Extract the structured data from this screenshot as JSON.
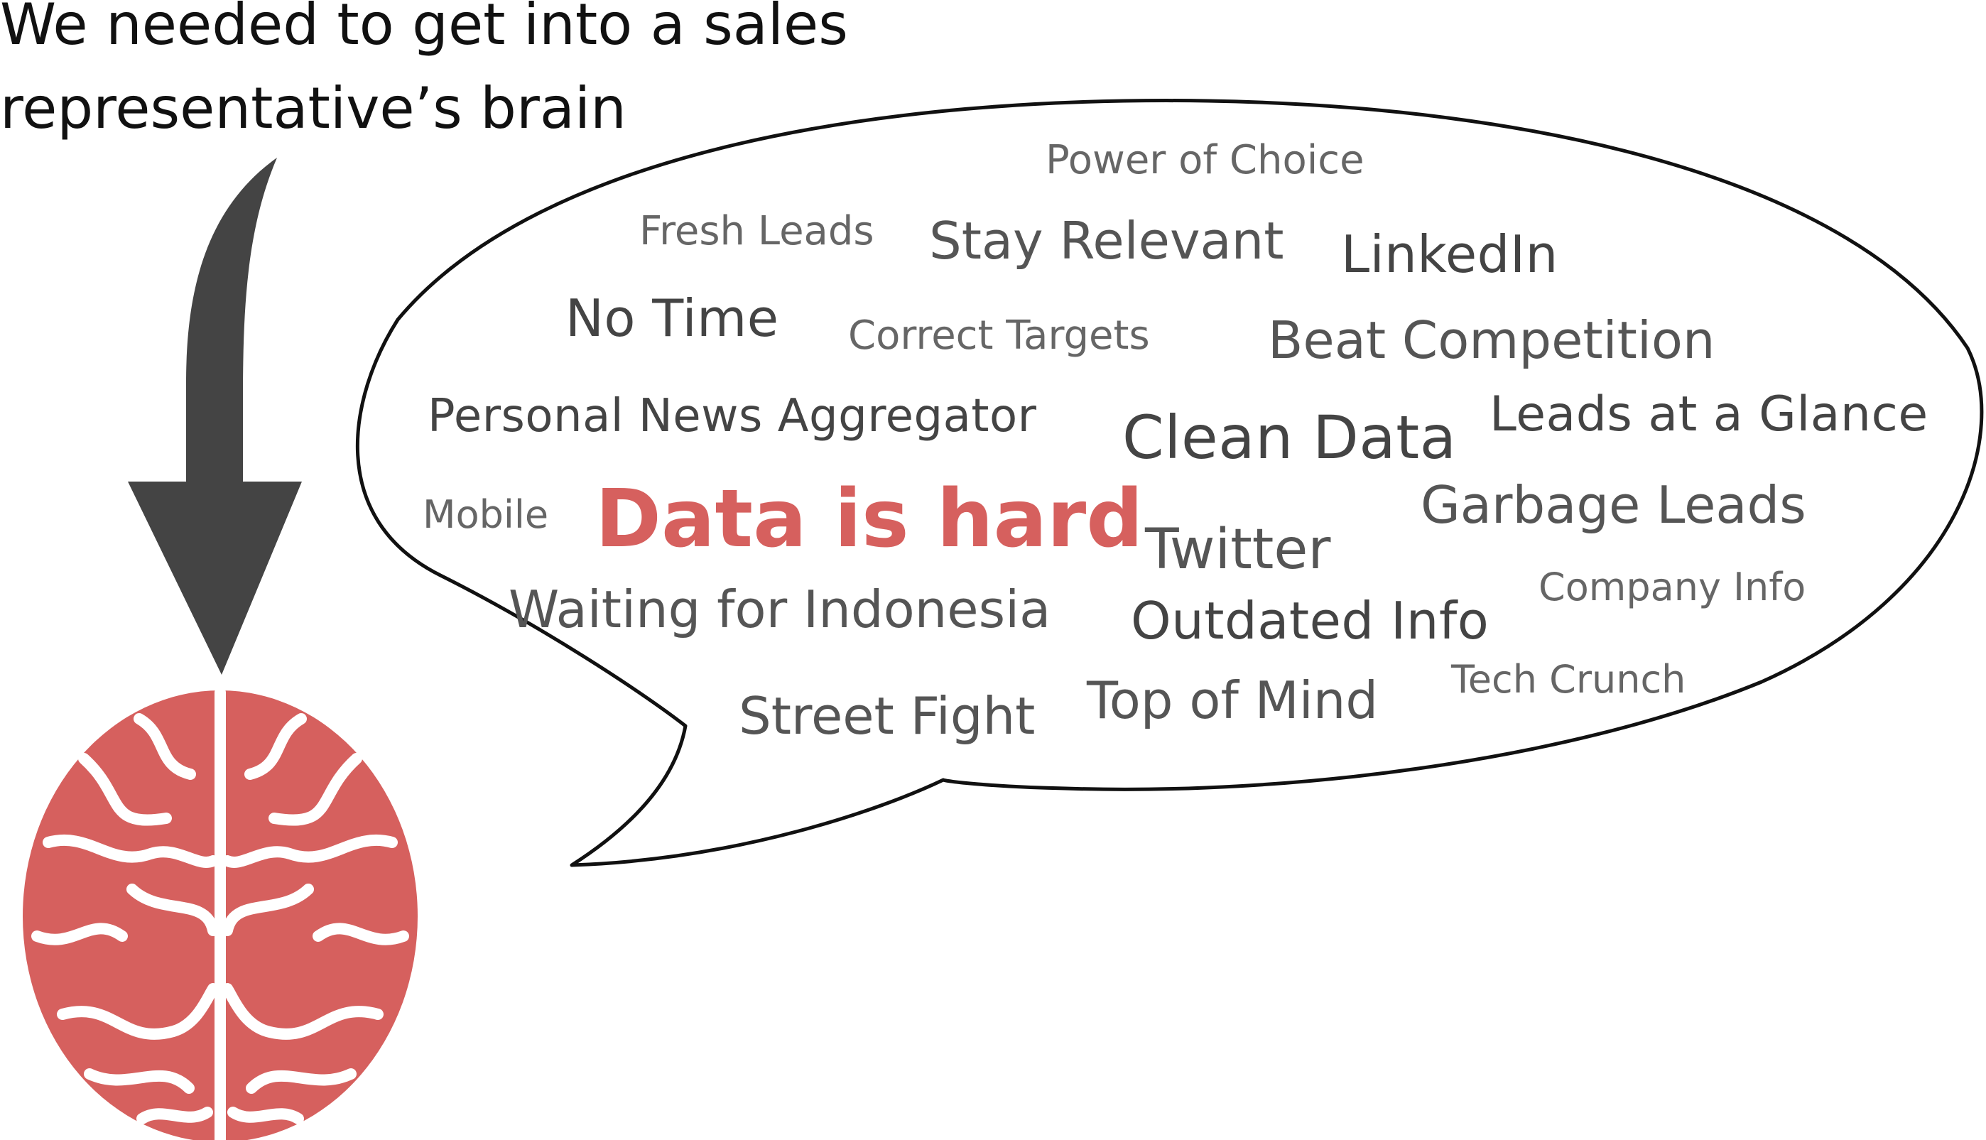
{
  "headline": {
    "line1": "We needed to get into a sales",
    "line2": "representative’s brain"
  },
  "colors": {
    "arrow": "#444444",
    "brain": "#d6605e",
    "highlight": "#d6605e",
    "word": "#555555",
    "bubble_stroke": "#111111"
  },
  "icons": [
    "down-arrow-icon",
    "brain-icon",
    "speech-bubble"
  ],
  "word_cloud": {
    "power_of_choice": "Power of Choice",
    "fresh_leads": "Fresh Leads",
    "stay_relevant": "Stay Relevant",
    "linkedin": "LinkedIn",
    "no_time": "No Time",
    "correct_targets": "Correct Targets",
    "beat_competition": "Beat Competition",
    "personal_news_aggregator": "Personal News Aggregator",
    "clean_data": "Clean Data",
    "leads_at_a_glance": "Leads at a Glance",
    "mobile": "Mobile",
    "data_is_hard": "Data is hard",
    "garbage_leads": "Garbage Leads",
    "twitter": "Twitter",
    "company_info": "Company Info",
    "waiting_for_indonesia": "Waiting for Indonesia",
    "outdated_info": "Outdated Info",
    "tech_crunch": "Tech Crunch",
    "street_fight": "Street Fight",
    "top_of_mind": "Top of Mind"
  }
}
